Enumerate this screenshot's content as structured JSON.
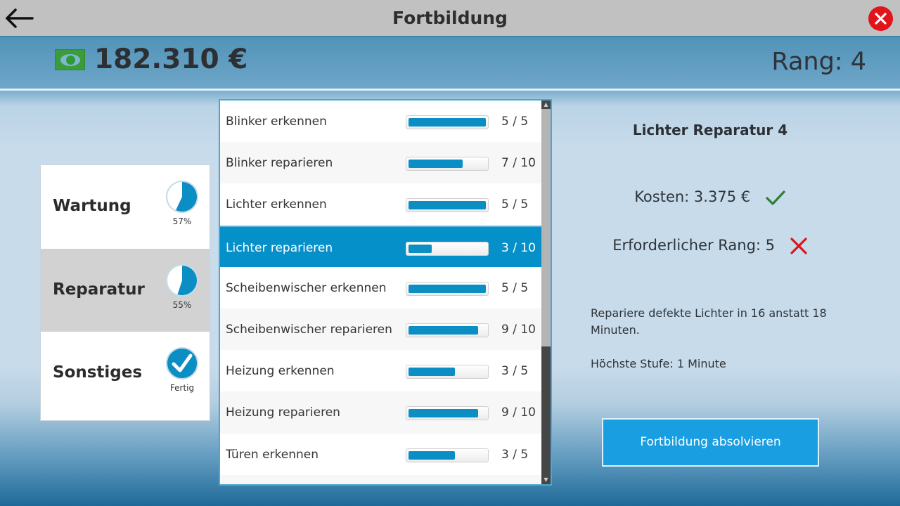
{
  "titlebar": {
    "title": "Fortbildung",
    "back_icon": "arrow-left-icon",
    "close_icon": "close-icon"
  },
  "header": {
    "money_icon": "banknote-icon",
    "money": "182.310 €",
    "rank": "Rang: 4"
  },
  "categories": [
    {
      "label": "Wartung",
      "progress": 57,
      "sub": "57%",
      "done": false,
      "active": false
    },
    {
      "label": "Reparatur",
      "progress": 55,
      "sub": "55%",
      "done": false,
      "active": true
    },
    {
      "label": "Sonstiges",
      "progress": 100,
      "sub": "Fertig",
      "done": true,
      "active": false
    }
  ],
  "skills": [
    {
      "label": "Blinker erkennen",
      "current": 5,
      "max": 5,
      "count": "5 / 5",
      "selected": false
    },
    {
      "label": "Blinker reparieren",
      "current": 7,
      "max": 10,
      "count": "7 / 10",
      "selected": false
    },
    {
      "label": "Lichter erkennen",
      "current": 5,
      "max": 5,
      "count": "5 / 5",
      "selected": false
    },
    {
      "label": "Lichter reparieren",
      "current": 3,
      "max": 10,
      "count": "3 / 10",
      "selected": true
    },
    {
      "label": "Scheibenwischer erkennen",
      "current": 5,
      "max": 5,
      "count": "5 / 5",
      "selected": false
    },
    {
      "label": "Scheibenwischer reparieren",
      "current": 9,
      "max": 10,
      "count": "9 / 10",
      "selected": false
    },
    {
      "label": "Heizung erkennen",
      "current": 3,
      "max": 5,
      "count": "3 / 5",
      "selected": false
    },
    {
      "label": "Heizung reparieren",
      "current": 9,
      "max": 10,
      "count": "9 / 10",
      "selected": false
    },
    {
      "label": "Türen erkennen",
      "current": 3,
      "max": 5,
      "count": "3 / 5",
      "selected": false
    },
    {
      "label": "",
      "current": 0,
      "max": 0,
      "count": "",
      "selected": false
    }
  ],
  "detail": {
    "title": "Lichter Reparatur 4",
    "cost": "Kosten: 3.375 €",
    "cost_ok": true,
    "cost_icon": "checkmark-icon",
    "required_rank": "Erforderlicher Rang: 5",
    "rank_ok": false,
    "rank_icon": "cross-icon",
    "description": "Repariere defekte Lichter in 16 anstatt 18 Minuten.",
    "max_level": "Höchste Stufe: 1 Minute",
    "button_label": "Fortbildung absolvieren"
  },
  "colors": {
    "accent": "#0690c9",
    "bar_fill": "#0a8ec4",
    "button": "#1a9ee2",
    "ok": "#2e7d3a",
    "fail": "#d9161c",
    "close": "#e2141b"
  }
}
